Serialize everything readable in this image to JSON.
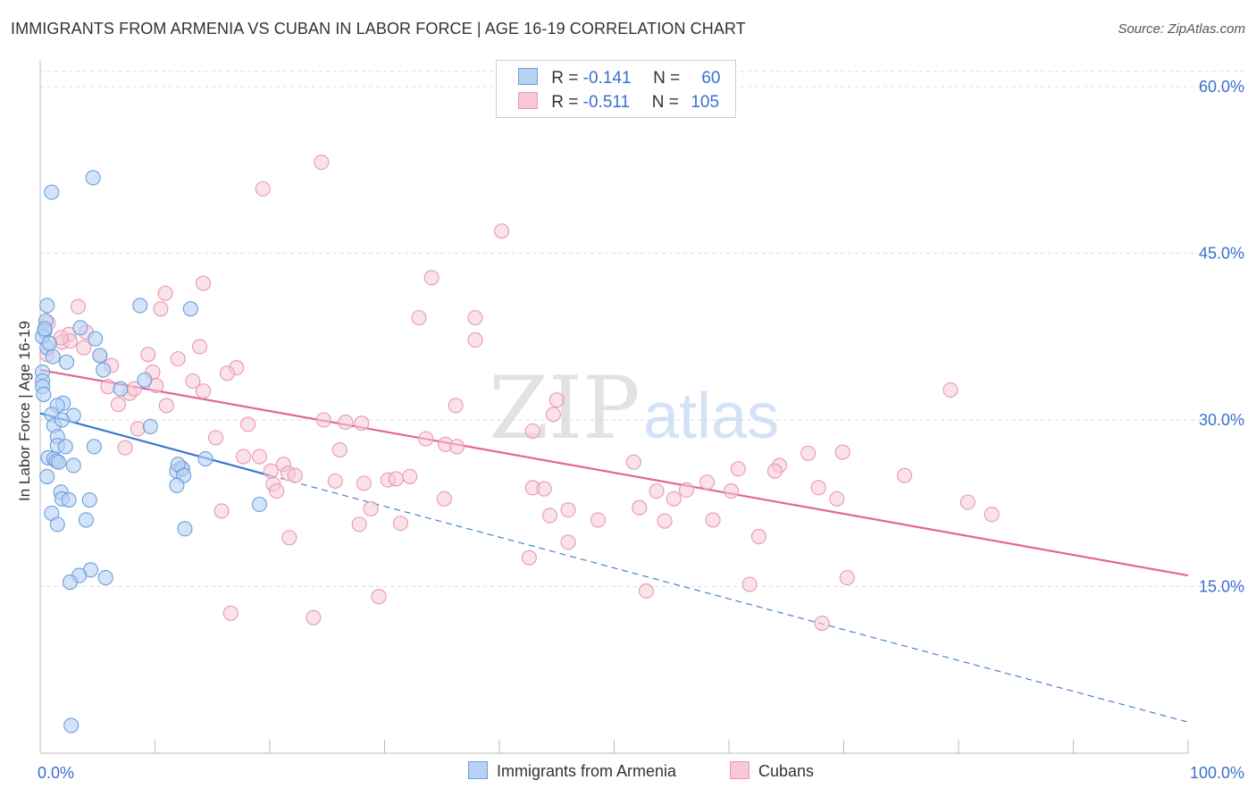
{
  "title": "IMMIGRANTS FROM ARMENIA VS CUBAN IN LABOR FORCE | AGE 16-19 CORRELATION CHART",
  "source": "Source: ZipAtlas.com",
  "watermark": {
    "zip": "ZIP",
    "atlas": "atlas"
  },
  "legend_stats": [
    {
      "r_label": "R = ",
      "r_value": "-0.141",
      "n_label": "N = ",
      "n_value": "60",
      "color": "#a8c8f0",
      "border": "#6a9ee0"
    },
    {
      "r_label": "R = ",
      "r_value": "-0.511",
      "n_label": "N = ",
      "n_value": "105",
      "color": "#f8c0d0",
      "border": "#e890ac"
    }
  ],
  "colors": {
    "blue_fill": "#b8d2f4",
    "blue_stroke": "#6a9ee0",
    "blue_line": "#3a78d0",
    "pink_fill": "#f8c8d6",
    "pink_stroke": "#e899b2",
    "pink_line": "#e06890",
    "axis_text": "#3a6fd0",
    "grid": "#dddddd"
  },
  "chart_data": {
    "type": "scatter",
    "title": "IMMIGRANTS FROM ARMENIA VS CUBAN IN LABOR FORCE | AGE 16-19 CORRELATION CHART",
    "xlabel": "",
    "ylabel": "In Labor Force | Age 16-19",
    "xlim": [
      0,
      100
    ],
    "ylim": [
      0,
      60
    ],
    "x_tick_labels": [
      "0.0%",
      "100.0%"
    ],
    "y_ticks": [
      15,
      30,
      45,
      60
    ],
    "y_tick_labels": [
      "15.0%",
      "30.0%",
      "45.0%",
      "60.0%"
    ],
    "series": [
      {
        "name": "Immigrants from Armenia",
        "color": "#b8d2f4",
        "trend": {
          "x0": 0,
          "y0": 30.6,
          "x1": 20,
          "y1": 25.0,
          "dashed_to_x": 100,
          "dashed_to_y": 2.8
        },
        "points": [
          [
            1.0,
            50.5
          ],
          [
            4.6,
            51.8
          ],
          [
            0.6,
            40.3
          ],
          [
            8.7,
            40.3
          ],
          [
            13.1,
            40.0
          ],
          [
            0.5,
            38.9
          ],
          [
            0.4,
            38.0
          ],
          [
            3.5,
            38.3
          ],
          [
            0.2,
            37.5
          ],
          [
            0.6,
            36.5
          ],
          [
            4.8,
            37.3
          ],
          [
            5.2,
            35.8
          ],
          [
            1.1,
            35.7
          ],
          [
            2.3,
            35.2
          ],
          [
            5.5,
            34.5
          ],
          [
            0.2,
            34.3
          ],
          [
            0.2,
            33.5
          ],
          [
            9.1,
            33.6
          ],
          [
            0.2,
            33.0
          ],
          [
            7.0,
            32.8
          ],
          [
            0.3,
            32.3
          ],
          [
            2.0,
            31.5
          ],
          [
            1.5,
            31.3
          ],
          [
            1.0,
            30.5
          ],
          [
            2.9,
            30.4
          ],
          [
            9.6,
            29.4
          ],
          [
            1.2,
            29.5
          ],
          [
            1.5,
            28.5
          ],
          [
            1.5,
            27.7
          ],
          [
            2.2,
            27.6
          ],
          [
            4.7,
            27.6
          ],
          [
            0.7,
            26.6
          ],
          [
            1.2,
            26.5
          ],
          [
            1.4,
            26.3
          ],
          [
            1.6,
            26.2
          ],
          [
            2.9,
            25.9
          ],
          [
            11.9,
            25.4
          ],
          [
            12.4,
            25.6
          ],
          [
            12.0,
            26.0
          ],
          [
            14.4,
            26.5
          ],
          [
            12.5,
            25.0
          ],
          [
            0.6,
            24.9
          ],
          [
            11.9,
            24.1
          ],
          [
            1.8,
            23.5
          ],
          [
            1.9,
            22.9
          ],
          [
            2.5,
            22.8
          ],
          [
            4.3,
            22.8
          ],
          [
            19.1,
            22.4
          ],
          [
            1.0,
            21.6
          ],
          [
            4.0,
            21.0
          ],
          [
            1.5,
            20.6
          ],
          [
            12.6,
            20.2
          ],
          [
            4.4,
            16.5
          ],
          [
            3.4,
            16.0
          ],
          [
            5.7,
            15.8
          ],
          [
            2.6,
            15.4
          ],
          [
            2.7,
            2.5
          ],
          [
            0.4,
            38.2
          ],
          [
            0.8,
            36.9
          ],
          [
            1.9,
            30.0
          ]
        ]
      },
      {
        "name": "Cubans",
        "color": "#f8c8d6",
        "trend": {
          "x0": 0,
          "y0": 34.5,
          "x1": 100,
          "y1": 16.0
        },
        "points": [
          [
            24.5,
            53.2
          ],
          [
            19.4,
            50.8
          ],
          [
            40.2,
            47.0
          ],
          [
            34.1,
            42.8
          ],
          [
            14.2,
            42.3
          ],
          [
            10.9,
            41.4
          ],
          [
            3.3,
            40.2
          ],
          [
            10.5,
            40.0
          ],
          [
            33.0,
            39.2
          ],
          [
            37.9,
            39.2
          ],
          [
            0.7,
            38.7
          ],
          [
            4.0,
            37.9
          ],
          [
            2.5,
            37.7
          ],
          [
            1.9,
            37.0
          ],
          [
            2.6,
            37.1
          ],
          [
            37.9,
            37.2
          ],
          [
            13.9,
            36.6
          ],
          [
            3.8,
            36.5
          ],
          [
            9.4,
            35.9
          ],
          [
            12.0,
            35.5
          ],
          [
            5.2,
            35.8
          ],
          [
            6.2,
            34.9
          ],
          [
            17.1,
            34.7
          ],
          [
            16.3,
            34.2
          ],
          [
            9.8,
            34.3
          ],
          [
            0.6,
            35.9
          ],
          [
            13.3,
            33.5
          ],
          [
            10.1,
            33.1
          ],
          [
            5.9,
            33.0
          ],
          [
            7.8,
            32.4
          ],
          [
            14.2,
            32.6
          ],
          [
            6.8,
            31.4
          ],
          [
            11.0,
            31.3
          ],
          [
            36.2,
            31.3
          ],
          [
            45.0,
            31.8
          ],
          [
            79.3,
            32.7
          ],
          [
            24.7,
            30.0
          ],
          [
            26.6,
            29.8
          ],
          [
            28.0,
            29.7
          ],
          [
            18.1,
            29.6
          ],
          [
            8.5,
            29.2
          ],
          [
            42.9,
            29.0
          ],
          [
            44.7,
            30.5
          ],
          [
            33.6,
            28.3
          ],
          [
            35.3,
            27.8
          ],
          [
            36.3,
            27.6
          ],
          [
            7.4,
            27.5
          ],
          [
            26.1,
            27.3
          ],
          [
            66.9,
            27.0
          ],
          [
            69.9,
            27.1
          ],
          [
            17.7,
            26.7
          ],
          [
            19.1,
            26.7
          ],
          [
            21.2,
            26.0
          ],
          [
            51.7,
            26.2
          ],
          [
            12.3,
            25.7
          ],
          [
            21.6,
            25.2
          ],
          [
            22.2,
            25.0
          ],
          [
            60.8,
            25.6
          ],
          [
            64.4,
            25.9
          ],
          [
            64.0,
            25.4
          ],
          [
            75.3,
            25.0
          ],
          [
            30.3,
            24.6
          ],
          [
            32.2,
            24.9
          ],
          [
            25.7,
            24.5
          ],
          [
            28.2,
            24.3
          ],
          [
            20.3,
            24.2
          ],
          [
            20.6,
            23.6
          ],
          [
            42.9,
            23.9
          ],
          [
            43.9,
            23.8
          ],
          [
            53.7,
            23.6
          ],
          [
            56.3,
            23.7
          ],
          [
            58.1,
            24.4
          ],
          [
            60.2,
            23.6
          ],
          [
            67.8,
            23.9
          ],
          [
            55.2,
            22.9
          ],
          [
            35.2,
            22.9
          ],
          [
            69.4,
            22.9
          ],
          [
            80.8,
            22.6
          ],
          [
            28.8,
            22.0
          ],
          [
            46.0,
            21.9
          ],
          [
            52.2,
            22.1
          ],
          [
            15.8,
            21.8
          ],
          [
            82.9,
            21.5
          ],
          [
            44.4,
            21.4
          ],
          [
            48.6,
            21.0
          ],
          [
            54.4,
            20.9
          ],
          [
            58.6,
            21.0
          ],
          [
            27.8,
            20.6
          ],
          [
            31.4,
            20.7
          ],
          [
            21.7,
            19.4
          ],
          [
            46.0,
            19.0
          ],
          [
            62.6,
            19.5
          ],
          [
            42.6,
            17.6
          ],
          [
            70.3,
            15.8
          ],
          [
            61.8,
            15.2
          ],
          [
            52.8,
            14.6
          ],
          [
            29.5,
            14.1
          ],
          [
            16.6,
            12.6
          ],
          [
            23.8,
            12.2
          ],
          [
            68.1,
            11.7
          ],
          [
            1.8,
            37.4
          ],
          [
            8.2,
            32.8
          ],
          [
            20.1,
            25.4
          ],
          [
            15.3,
            28.4
          ],
          [
            31.0,
            24.7
          ]
        ]
      }
    ]
  },
  "bottom_legend": [
    {
      "label": "Immigrants from Armenia",
      "color": "#b8d2f4",
      "border": "#6a9ee0"
    },
    {
      "label": "Cubans",
      "color": "#f8c8d6",
      "border": "#e899b2"
    }
  ]
}
